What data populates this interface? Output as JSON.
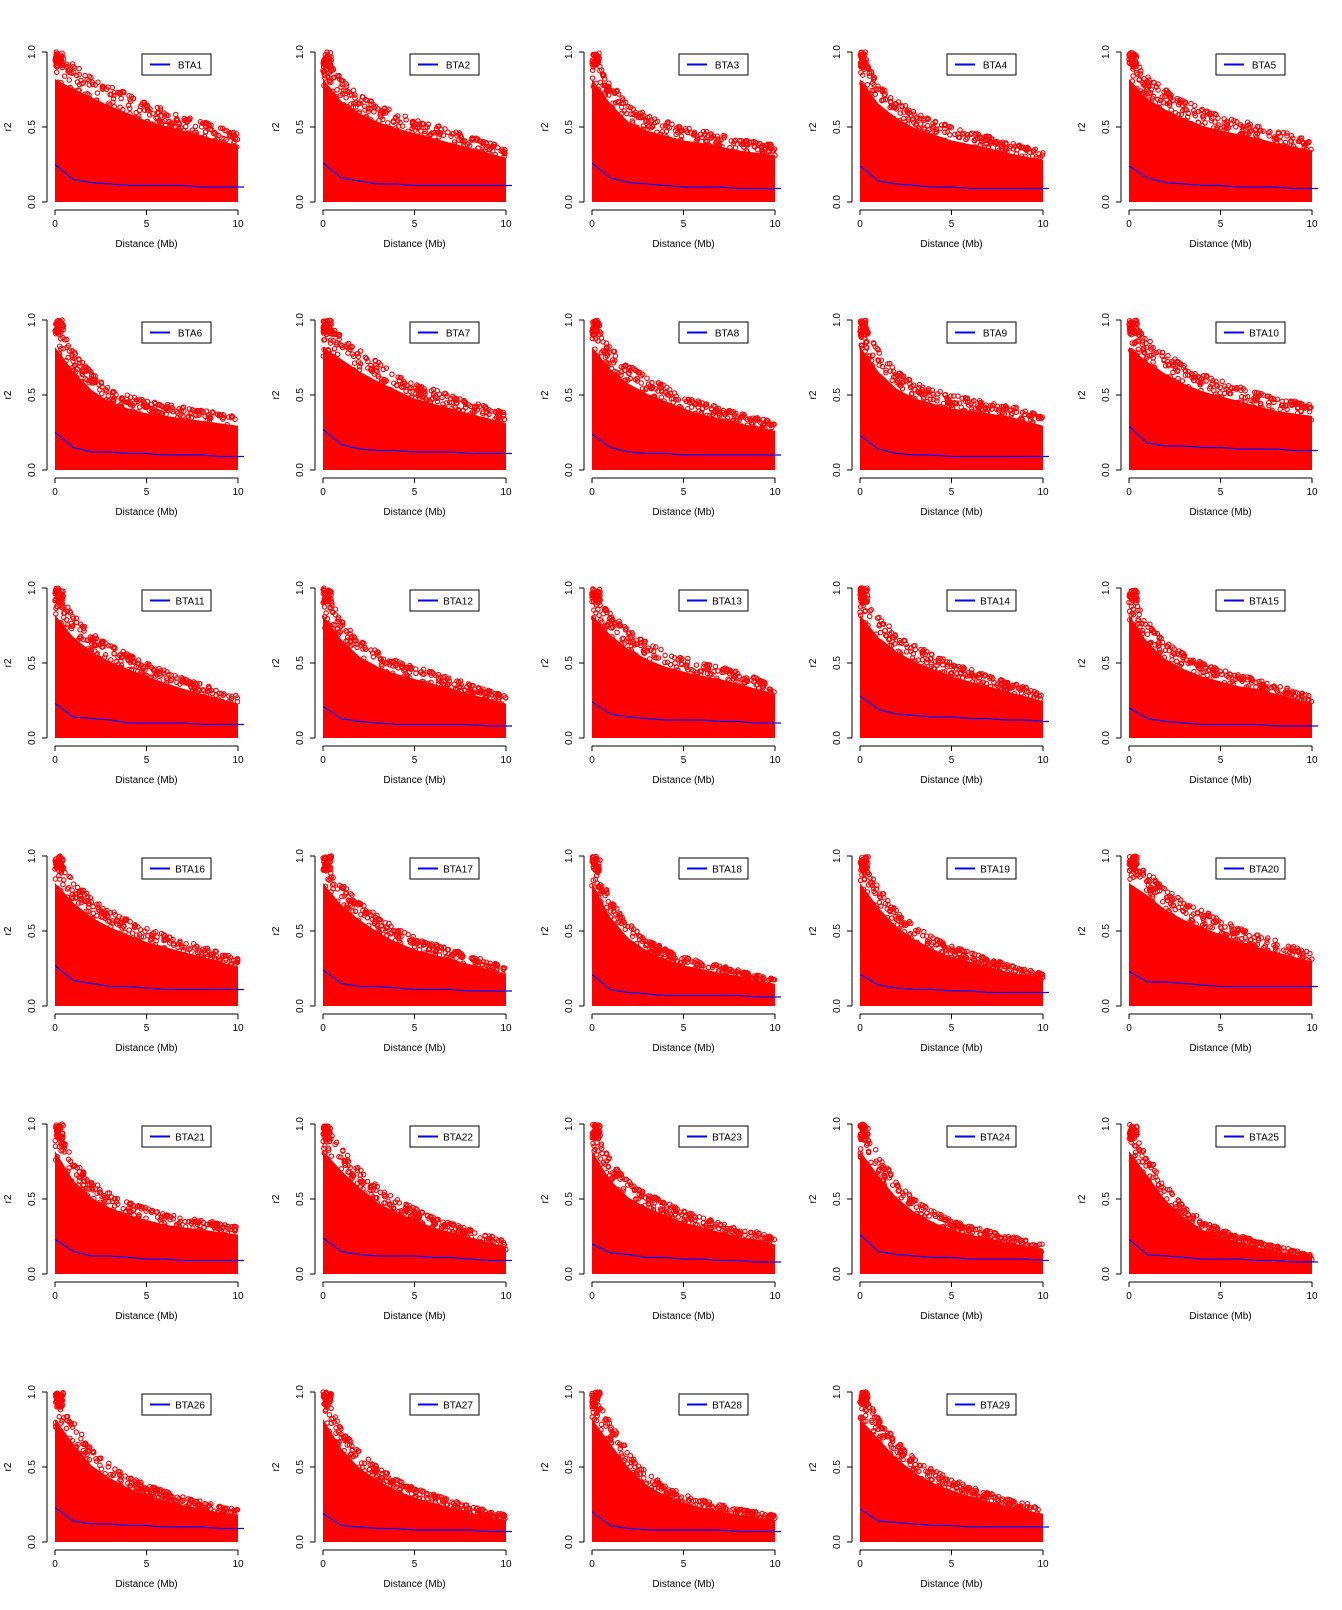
{
  "chart_data": {
    "type": "scatter",
    "description_free": true,
    "xlabel": "Distance (Mb)",
    "ylabel": "r2",
    "xlim": [
      0,
      10
    ],
    "ylim": [
      0,
      1
    ],
    "x_ticks": [
      0,
      5,
      10
    ],
    "y_ticks": [
      0.0,
      0.5,
      1.0
    ],
    "y_tick_labels": [
      "0.0",
      "0.5",
      "1.0"
    ],
    "x_tick_labels": [
      "0",
      "5",
      "10"
    ],
    "point_color": "#ff0000",
    "line_color": "#0000ff",
    "legend_position": "top-right",
    "trend_x": [
      0,
      1,
      2,
      3,
      4,
      5,
      6,
      7,
      8,
      9,
      10
    ],
    "panels": [
      {
        "name": "BTA1",
        "trend": [
          0.25,
          0.15,
          0.13,
          0.12,
          0.11,
          0.11,
          0.11,
          0.11,
          0.1,
          0.1,
          0.1
        ],
        "envelope": [
          1.0,
          0.92,
          0.85,
          0.78,
          0.72,
          0.66,
          0.62,
          0.58,
          0.54,
          0.5,
          0.46
        ]
      },
      {
        "name": "BTA2",
        "trend": [
          0.26,
          0.16,
          0.14,
          0.12,
          0.12,
          0.11,
          0.11,
          0.11,
          0.11,
          0.11,
          0.11
        ],
        "envelope": [
          1.0,
          0.82,
          0.72,
          0.65,
          0.6,
          0.56,
          0.52,
          0.48,
          0.44,
          0.4,
          0.36
        ]
      },
      {
        "name": "BTA3",
        "trend": [
          0.26,
          0.16,
          0.13,
          0.12,
          0.11,
          0.1,
          0.1,
          0.1,
          0.09,
          0.09,
          0.09
        ],
        "envelope": [
          1.0,
          0.8,
          0.65,
          0.58,
          0.54,
          0.5,
          0.48,
          0.45,
          0.42,
          0.4,
          0.38
        ]
      },
      {
        "name": "BTA4",
        "trend": [
          0.24,
          0.14,
          0.12,
          0.11,
          0.1,
          0.1,
          0.09,
          0.09,
          0.09,
          0.09,
          0.09
        ],
        "envelope": [
          1.0,
          0.8,
          0.68,
          0.6,
          0.55,
          0.5,
          0.47,
          0.44,
          0.4,
          0.37,
          0.34
        ]
      },
      {
        "name": "BTA5",
        "trend": [
          0.24,
          0.16,
          0.13,
          0.12,
          0.11,
          0.11,
          0.1,
          0.1,
          0.1,
          0.09,
          0.09
        ],
        "envelope": [
          1.0,
          0.84,
          0.75,
          0.68,
          0.62,
          0.58,
          0.55,
          0.52,
          0.48,
          0.45,
          0.42
        ]
      },
      {
        "name": "BTA6",
        "trend": [
          0.25,
          0.15,
          0.12,
          0.12,
          0.11,
          0.11,
          0.1,
          0.1,
          0.1,
          0.09,
          0.09
        ],
        "envelope": [
          1.0,
          0.8,
          0.65,
          0.55,
          0.5,
          0.46,
          0.44,
          0.42,
          0.4,
          0.38,
          0.36
        ]
      },
      {
        "name": "BTA7",
        "trend": [
          0.27,
          0.17,
          0.14,
          0.13,
          0.13,
          0.12,
          0.12,
          0.12,
          0.11,
          0.11,
          0.11
        ],
        "envelope": [
          1.0,
          0.9,
          0.8,
          0.72,
          0.65,
          0.58,
          0.54,
          0.5,
          0.46,
          0.42,
          0.38
        ]
      },
      {
        "name": "BTA8",
        "trend": [
          0.24,
          0.15,
          0.12,
          0.11,
          0.11,
          0.1,
          0.1,
          0.1,
          0.1,
          0.1,
          0.1
        ],
        "envelope": [
          1.0,
          0.82,
          0.7,
          0.62,
          0.56,
          0.5,
          0.45,
          0.42,
          0.38,
          0.35,
          0.32
        ]
      },
      {
        "name": "BTA9",
        "trend": [
          0.23,
          0.14,
          0.11,
          0.1,
          0.1,
          0.09,
          0.09,
          0.09,
          0.09,
          0.09,
          0.09
        ],
        "envelope": [
          1.0,
          0.8,
          0.66,
          0.58,
          0.54,
          0.5,
          0.48,
          0.46,
          0.44,
          0.4,
          0.36
        ]
      },
      {
        "name": "BTA10",
        "trend": [
          0.29,
          0.18,
          0.16,
          0.16,
          0.15,
          0.15,
          0.14,
          0.14,
          0.14,
          0.13,
          0.13
        ],
        "envelope": [
          1.0,
          0.88,
          0.78,
          0.7,
          0.64,
          0.6,
          0.56,
          0.52,
          0.48,
          0.46,
          0.44
        ]
      },
      {
        "name": "BTA11",
        "trend": [
          0.23,
          0.14,
          0.13,
          0.12,
          0.1,
          0.1,
          0.1,
          0.1,
          0.09,
          0.09,
          0.09
        ],
        "envelope": [
          1.0,
          0.82,
          0.7,
          0.62,
          0.56,
          0.5,
          0.45,
          0.4,
          0.36,
          0.32,
          0.28
        ]
      },
      {
        "name": "BTA12",
        "trend": [
          0.21,
          0.13,
          0.11,
          0.1,
          0.09,
          0.09,
          0.09,
          0.09,
          0.09,
          0.08,
          0.08
        ],
        "envelope": [
          1.0,
          0.8,
          0.66,
          0.58,
          0.52,
          0.48,
          0.44,
          0.4,
          0.36,
          0.32,
          0.28
        ]
      },
      {
        "name": "BTA13",
        "trend": [
          0.24,
          0.16,
          0.14,
          0.13,
          0.12,
          0.12,
          0.12,
          0.11,
          0.11,
          0.1,
          0.1
        ],
        "envelope": [
          1.0,
          0.84,
          0.72,
          0.64,
          0.58,
          0.54,
          0.5,
          0.48,
          0.44,
          0.4,
          0.36
        ]
      },
      {
        "name": "BTA14",
        "trend": [
          0.28,
          0.19,
          0.16,
          0.15,
          0.14,
          0.14,
          0.13,
          0.13,
          0.12,
          0.12,
          0.11
        ],
        "envelope": [
          1.0,
          0.82,
          0.7,
          0.62,
          0.56,
          0.5,
          0.46,
          0.42,
          0.38,
          0.34,
          0.3
        ]
      },
      {
        "name": "BTA15",
        "trend": [
          0.2,
          0.13,
          0.11,
          0.1,
          0.09,
          0.09,
          0.09,
          0.09,
          0.08,
          0.08,
          0.08
        ],
        "envelope": [
          1.0,
          0.78,
          0.64,
          0.56,
          0.5,
          0.46,
          0.42,
          0.4,
          0.36,
          0.32,
          0.28
        ]
      },
      {
        "name": "BTA16",
        "trend": [
          0.27,
          0.17,
          0.15,
          0.13,
          0.13,
          0.12,
          0.11,
          0.11,
          0.11,
          0.11,
          0.11
        ],
        "envelope": [
          1.0,
          0.84,
          0.72,
          0.64,
          0.58,
          0.52,
          0.48,
          0.44,
          0.4,
          0.36,
          0.32
        ]
      },
      {
        "name": "BTA17",
        "trend": [
          0.24,
          0.15,
          0.13,
          0.13,
          0.12,
          0.11,
          0.11,
          0.11,
          0.1,
          0.1,
          0.1
        ],
        "envelope": [
          1.0,
          0.82,
          0.7,
          0.6,
          0.52,
          0.46,
          0.42,
          0.38,
          0.34,
          0.3,
          0.26
        ]
      },
      {
        "name": "BTA18",
        "trend": [
          0.21,
          0.11,
          0.09,
          0.08,
          0.07,
          0.07,
          0.07,
          0.07,
          0.07,
          0.06,
          0.06
        ],
        "envelope": [
          1.0,
          0.72,
          0.55,
          0.45,
          0.38,
          0.33,
          0.3,
          0.27,
          0.24,
          0.21,
          0.18
        ]
      },
      {
        "name": "BTA19",
        "trend": [
          0.21,
          0.14,
          0.12,
          0.11,
          0.11,
          0.1,
          0.1,
          0.09,
          0.09,
          0.09,
          0.09
        ],
        "envelope": [
          1.0,
          0.8,
          0.64,
          0.54,
          0.46,
          0.4,
          0.36,
          0.32,
          0.28,
          0.25,
          0.22
        ]
      },
      {
        "name": "BTA20",
        "trend": [
          0.23,
          0.16,
          0.16,
          0.15,
          0.14,
          0.13,
          0.13,
          0.13,
          0.13,
          0.13,
          0.13
        ],
        "envelope": [
          1.0,
          0.9,
          0.78,
          0.7,
          0.64,
          0.58,
          0.52,
          0.48,
          0.44,
          0.4,
          0.36
        ]
      },
      {
        "name": "BTA21",
        "trend": [
          0.23,
          0.15,
          0.12,
          0.12,
          0.11,
          0.1,
          0.1,
          0.09,
          0.09,
          0.09,
          0.09
        ],
        "envelope": [
          1.0,
          0.76,
          0.62,
          0.54,
          0.48,
          0.44,
          0.4,
          0.38,
          0.36,
          0.34,
          0.32
        ]
      },
      {
        "name": "BTA22",
        "trend": [
          0.24,
          0.15,
          0.13,
          0.12,
          0.12,
          0.12,
          0.11,
          0.11,
          0.1,
          0.09,
          0.09
        ],
        "envelope": [
          1.0,
          0.84,
          0.7,
          0.58,
          0.5,
          0.44,
          0.38,
          0.34,
          0.3,
          0.26,
          0.22
        ]
      },
      {
        "name": "BTA23",
        "trend": [
          0.2,
          0.14,
          0.13,
          0.11,
          0.11,
          0.1,
          0.1,
          0.09,
          0.09,
          0.08,
          0.08
        ],
        "envelope": [
          1.0,
          0.76,
          0.62,
          0.54,
          0.48,
          0.42,
          0.38,
          0.34,
          0.3,
          0.28,
          0.24
        ]
      },
      {
        "name": "BTA24",
        "trend": [
          0.26,
          0.15,
          0.13,
          0.12,
          0.11,
          0.11,
          0.1,
          0.1,
          0.1,
          0.1,
          0.09
        ],
        "envelope": [
          1.0,
          0.8,
          0.62,
          0.5,
          0.42,
          0.36,
          0.32,
          0.29,
          0.26,
          0.23,
          0.2
        ]
      },
      {
        "name": "BTA25",
        "trend": [
          0.23,
          0.13,
          0.12,
          0.11,
          0.1,
          0.1,
          0.1,
          0.09,
          0.09,
          0.08,
          0.08
        ],
        "envelope": [
          1.0,
          0.8,
          0.6,
          0.46,
          0.36,
          0.3,
          0.26,
          0.22,
          0.19,
          0.16,
          0.13
        ]
      },
      {
        "name": "BTA26",
        "trend": [
          0.23,
          0.14,
          0.12,
          0.12,
          0.11,
          0.11,
          0.1,
          0.1,
          0.1,
          0.09,
          0.09
        ],
        "envelope": [
          1.0,
          0.8,
          0.62,
          0.52,
          0.44,
          0.38,
          0.34,
          0.3,
          0.27,
          0.24,
          0.22
        ]
      },
      {
        "name": "BTA27",
        "trend": [
          0.19,
          0.11,
          0.1,
          0.09,
          0.09,
          0.08,
          0.08,
          0.08,
          0.08,
          0.07,
          0.07
        ],
        "envelope": [
          1.0,
          0.76,
          0.6,
          0.5,
          0.42,
          0.36,
          0.32,
          0.28,
          0.24,
          0.21,
          0.18
        ]
      },
      {
        "name": "BTA28",
        "trend": [
          0.2,
          0.11,
          0.09,
          0.08,
          0.08,
          0.08,
          0.08,
          0.08,
          0.07,
          0.07,
          0.07
        ],
        "envelope": [
          1.0,
          0.8,
          0.6,
          0.46,
          0.38,
          0.32,
          0.28,
          0.25,
          0.22,
          0.2,
          0.18
        ]
      },
      {
        "name": "BTA29",
        "trend": [
          0.22,
          0.14,
          0.13,
          0.12,
          0.11,
          0.11,
          0.1,
          0.1,
          0.1,
          0.1,
          0.1
        ],
        "envelope": [
          1.0,
          0.84,
          0.68,
          0.56,
          0.48,
          0.42,
          0.37,
          0.33,
          0.29,
          0.26,
          0.23
        ]
      }
    ]
  }
}
